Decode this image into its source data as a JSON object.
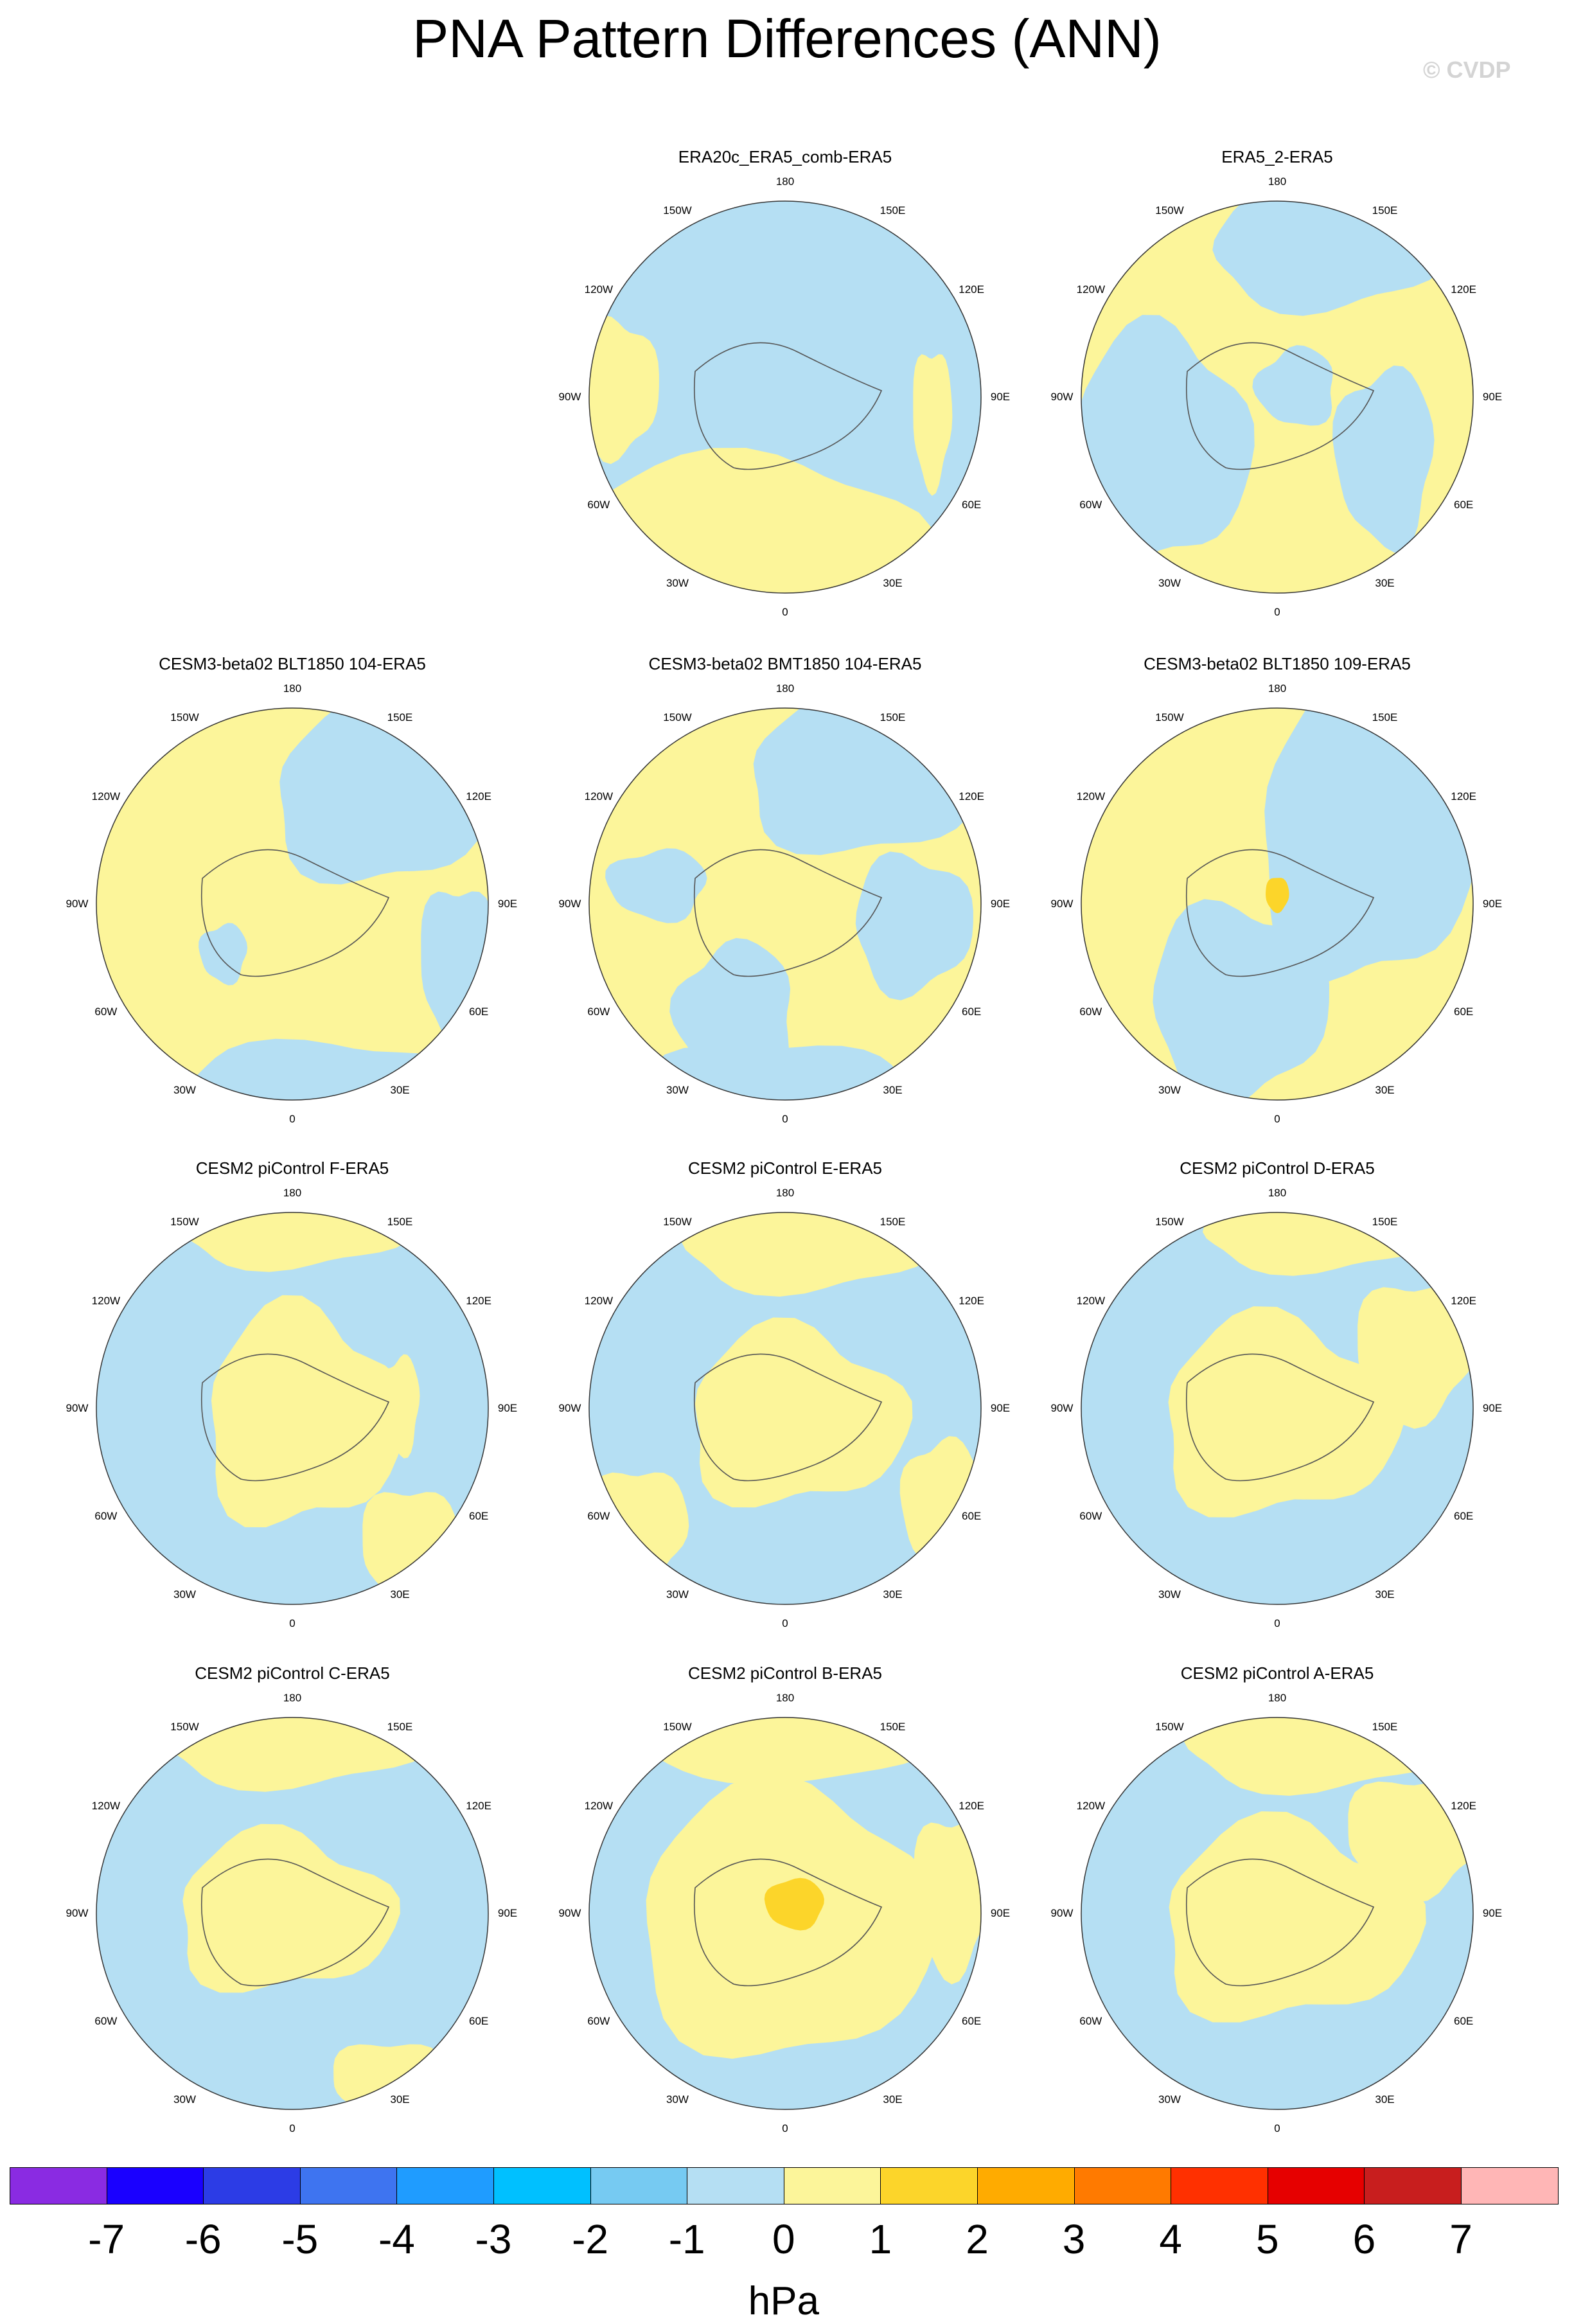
{
  "page": {
    "title": "PNA Pattern Differences (ANN)",
    "watermark": "© CVDP"
  },
  "chart_data": {
    "type": "heatmap",
    "projection": "polar stereographic, Northern Hemisphere, 0° longitude at bottom",
    "lon_labels": [
      "180",
      "150E",
      "120E",
      "90E",
      "60E",
      "30E",
      "0",
      "30W",
      "60W",
      "90W",
      "120W",
      "150W"
    ],
    "colorbar": {
      "unit": "hPa",
      "ticks": [
        "-7",
        "-6",
        "-5",
        "-4",
        "-3",
        "-2",
        "-1",
        "0",
        "1",
        "2",
        "3",
        "4",
        "5",
        "6",
        "7"
      ],
      "colors": [
        "#8a2be2",
        "#1a00ff",
        "#2c3ce6",
        "#3e74f0",
        "#1f9cff",
        "#00c0ff",
        "#76caf2",
        "#b5dff3",
        "#fcf59a",
        "#fcd52a",
        "#ffab00",
        "#ff7a00",
        "#ff3000",
        "#e60000",
        "#c81e1e",
        "#ffb6b6"
      ]
    },
    "fill_colors": {
      "positive": "#fcf59a",
      "negative": "#b5dff3",
      "strong_positive": "#fcd52a"
    },
    "panels": [
      {
        "title": "ERA20c_ERA5_comb-ERA5"
      },
      {
        "title": "ERA5_2-ERA5"
      },
      {
        "title": "CESM3-beta02 BLT1850 104-ERA5"
      },
      {
        "title": "CESM3-beta02 BMT1850 104-ERA5"
      },
      {
        "title": "CESM3-beta02 BLT1850 109-ERA5"
      },
      {
        "title": "CESM2 piControl F-ERA5"
      },
      {
        "title": "CESM2 piControl E-ERA5"
      },
      {
        "title": "CESM2 piControl D-ERA5"
      },
      {
        "title": "CESM2 piControl C-ERA5"
      },
      {
        "title": "CESM2 piControl B-ERA5"
      },
      {
        "title": "CESM2 piControl A-ERA5"
      }
    ]
  }
}
